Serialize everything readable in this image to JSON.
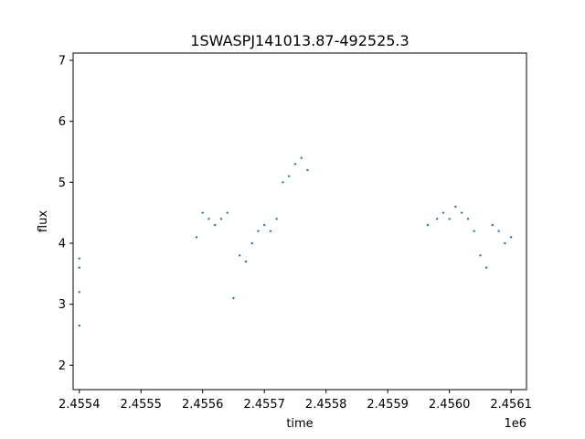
{
  "chart_data": {
    "type": "scatter",
    "title": "1SWASPJ141013.87-492525.3",
    "xlabel": "time",
    "ylabel": "flux",
    "x_offset_label": "1e6",
    "x_tick_values": [
      2.4554,
      2.4555,
      2.4556,
      2.4557,
      2.4558,
      2.4559,
      2.456,
      2.4561
    ],
    "x_tick_labels": [
      "2.4554",
      "2.4555",
      "2.4556",
      "2.4557",
      "2.4558",
      "2.4559",
      "2.4560",
      "2.4561"
    ],
    "y_tick_values": [
      2,
      3,
      4,
      5,
      6,
      7
    ],
    "y_tick_labels": [
      "2",
      "3",
      "4",
      "5",
      "6",
      "7"
    ],
    "xlim": [
      2.45539,
      2.456125
    ],
    "ylim": [
      1.6,
      7.12
    ],
    "grid": false,
    "marker_color": "#1f77b4",
    "series": [
      {
        "points": [
          [
            2.4554,
            3.6
          ],
          [
            2.4554,
            3.2
          ],
          [
            2.4554,
            2.65
          ],
          [
            2.4554,
            3.75
          ],
          [
            2.45559,
            4.1
          ],
          [
            2.4556,
            4.5
          ],
          [
            2.45561,
            4.4
          ],
          [
            2.45562,
            4.3
          ],
          [
            2.45563,
            4.4
          ],
          [
            2.45564,
            4.5
          ],
          [
            2.45565,
            3.1
          ],
          [
            2.45566,
            3.8
          ],
          [
            2.45567,
            3.7
          ],
          [
            2.45568,
            4.0
          ],
          [
            2.45569,
            4.2
          ],
          [
            2.4557,
            4.3
          ],
          [
            2.45571,
            4.2
          ],
          [
            2.45572,
            4.4
          ],
          [
            2.45573,
            5.0
          ],
          [
            2.45574,
            5.1
          ],
          [
            2.45575,
            5.3
          ],
          [
            2.45576,
            5.4
          ],
          [
            2.45577,
            5.2
          ],
          [
            2.455965,
            4.3
          ],
          [
            2.45598,
            4.4
          ],
          [
            2.45599,
            4.5
          ],
          [
            2.456,
            4.4
          ],
          [
            2.45601,
            4.6
          ],
          [
            2.45602,
            4.5
          ],
          [
            2.45603,
            4.4
          ],
          [
            2.45604,
            4.2
          ],
          [
            2.45605,
            3.8
          ],
          [
            2.45606,
            3.6
          ],
          [
            2.45607,
            4.3
          ],
          [
            2.45608,
            4.2
          ],
          [
            2.45609,
            4.0
          ],
          [
            2.4561,
            4.1
          ]
        ]
      }
    ]
  }
}
